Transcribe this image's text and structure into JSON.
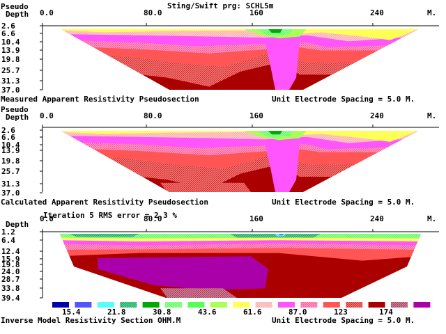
{
  "title": "Sting/Swift prg: SCHL5m",
  "axis_unit": "M.",
  "x_ticks": [
    "0.0",
    "80.0",
    "160",
    "240"
  ],
  "spacing_label": "Unit Electrode Spacing = 5.0 M.",
  "colors": {
    "scale": [
      "#0000aa",
      "#5555ff",
      "#55ffff",
      "#00aa55",
      "#00aa00",
      "#55ff55",
      "#55ff55",
      "#aaff55",
      "#ffff55",
      "#ffaaaa",
      "#ff55ff",
      "#ff5599",
      "#ff5555",
      "#dd2222",
      "#aa0000",
      "#aa3355",
      "#aa00aa"
    ],
    "hatched_indices": [
      3,
      5,
      9,
      11,
      13,
      15
    ]
  },
  "chart_data": [
    {
      "type": "heatmap",
      "name_label": "Measured Apparent Resistivity Pseudosection",
      "ylabel": [
        "Pseudo",
        "Depth"
      ],
      "y_ticks": [
        "2.6",
        "6.6",
        "10.4",
        "13.9",
        "19.8",
        "25.7",
        "31.3",
        "37.0"
      ],
      "xlim": [
        0,
        250
      ],
      "ylim": [
        2.6,
        37.0
      ]
    },
    {
      "type": "heatmap",
      "name_label": "Calculated Apparent Resistivity Pseudosection",
      "ylabel": [
        "Pseudo",
        "Depth"
      ],
      "y_ticks": [
        "2.6",
        "6.6",
        "10.4",
        "13.9",
        "19.8",
        "25.7",
        "31.3",
        "37.0"
      ],
      "xlim": [
        0,
        250
      ],
      "ylim": [
        2.6,
        37.0
      ],
      "iteration_note": "Iteration 5 RMS error = 2.3 %"
    },
    {
      "type": "heatmap",
      "name_label": "Inverse Model Resistivity Section OHM.M",
      "ylabel": [
        "Depth"
      ],
      "y_ticks": [
        "1.2",
        "6.4",
        "12.4",
        "15.9",
        "19.8",
        "24.0",
        "28.7",
        "33.8",
        "39.4"
      ],
      "xlim": [
        0,
        250
      ],
      "ylim": [
        1.2,
        39.4
      ],
      "legend_values": [
        "15.4",
        "21.8",
        "30.8",
        "43.6",
        "61.6",
        "87.0",
        "123",
        "174"
      ]
    }
  ]
}
